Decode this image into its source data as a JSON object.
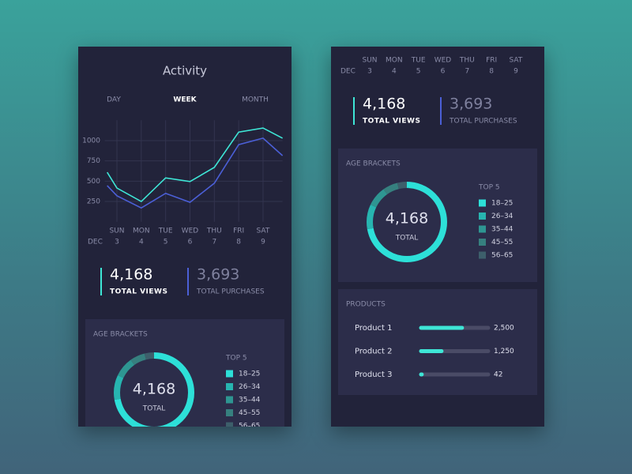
{
  "title": "Activity",
  "tabs": [
    "DAY",
    "WEEK",
    "MONTH"
  ],
  "activity": {
    "type": "line",
    "month_label": "DEC",
    "weekdays": [
      "SUN",
      "MON",
      "TUE",
      "WED",
      "THU",
      "FRI",
      "SAT"
    ],
    "x": [
      2.6,
      3,
      4,
      5,
      6,
      7,
      8,
      9,
      9.8
    ],
    "xlim": [
      2.5,
      9.8
    ],
    "xticks": [
      3,
      4,
      5,
      6,
      7,
      8,
      9
    ],
    "ylim": [
      0,
      1250
    ],
    "yticks": [
      250,
      500,
      750,
      1000
    ],
    "grid": true,
    "series": [
      {
        "color": "#3ee6d6",
        "values": [
          610,
          415,
          250,
          540,
          495,
          670,
          1105,
          1155,
          1030
        ]
      },
      {
        "color": "#4b5fd6",
        "values": [
          445,
          320,
          170,
          350,
          240,
          475,
          950,
          1030,
          815
        ]
      }
    ]
  },
  "stats": [
    {
      "value": "4,168",
      "label": "TOTAL VIEWS",
      "color": "#3ee6d6"
    },
    {
      "value": "3,693",
      "label": "TOTAL PURCHASES",
      "color": "#4b5fd6"
    }
  ],
  "age_brackets": {
    "type": "donut",
    "title": "AGE BRACKETS",
    "total": "4,168",
    "total_label": "TOTAL",
    "legend_title": "TOP 5",
    "categories": [
      "18–25",
      "26–34",
      "35–44",
      "45–55",
      "56–65"
    ],
    "values": [
      72,
      10,
      8,
      6,
      4
    ],
    "colors": [
      "#2de0d8",
      "#27b5b0",
      "#2e9692",
      "#36807f",
      "#3d5f6b"
    ]
  },
  "products": {
    "type": "bar",
    "title": "PRODUCTS",
    "xlim": [
      0,
      4100
    ],
    "color": "#3ee6d6",
    "categories": [
      "Product 1",
      "Product 2",
      "Product 3"
    ],
    "values": [
      2500,
      1250,
      42
    ],
    "value_labels": [
      "2,500",
      "1,250",
      "42"
    ]
  }
}
